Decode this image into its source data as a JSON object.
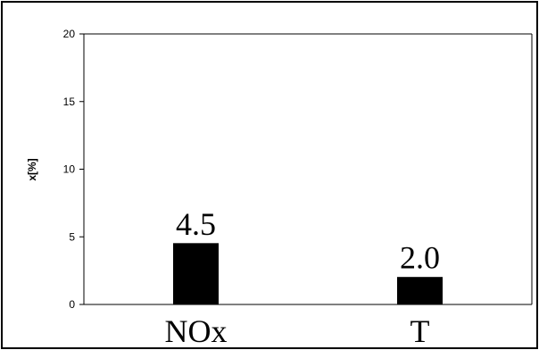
{
  "chart_data": {
    "type": "bar",
    "categories": [
      "NOx",
      "T"
    ],
    "values": [
      4.5,
      2.0
    ],
    "data_labels": [
      "4.5",
      "2.0"
    ],
    "title": "",
    "xlabel": "",
    "ylabel": "x[%]",
    "ylim": [
      0,
      20
    ],
    "yticks": [
      0,
      5,
      10,
      15,
      20
    ],
    "grid": false,
    "legend": "none",
    "bar_color": "#000000"
  }
}
